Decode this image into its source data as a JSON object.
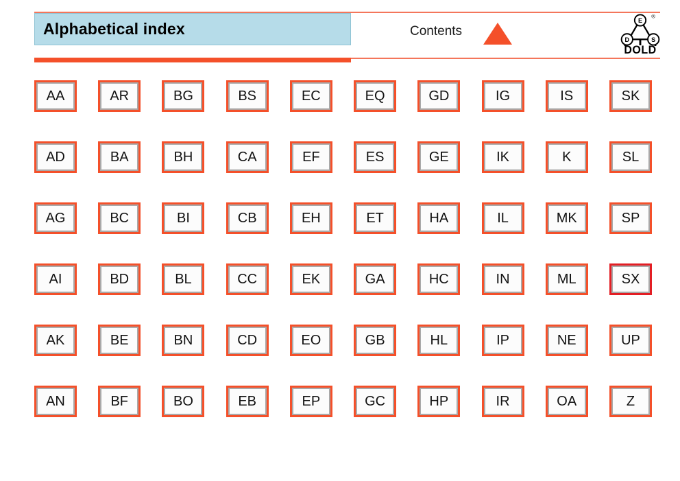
{
  "header": {
    "title": "Alphabetical index",
    "contents_label": "Contents",
    "logo": {
      "brand": "DOLD",
      "emblem_letters": [
        "E",
        "D",
        "S"
      ],
      "registered_mark": "®"
    }
  },
  "colors": {
    "accent_orange": "#F4502A",
    "accent_orange_light": "#F4765B",
    "highlight_red": "#E31E24",
    "title_bg_blue": "#B6DCE9",
    "button_border_gray": "#A9A9A9",
    "button_bg": "#FCFCFC",
    "text_black": "#111111"
  },
  "index_grid": {
    "rows": [
      [
        "AA",
        "AR",
        "BG",
        "BS",
        "EC",
        "EQ",
        "GD",
        "IG",
        "IS",
        "SK"
      ],
      [
        "AD",
        "BA",
        "BH",
        "CA",
        "EF",
        "ES",
        "GE",
        "IK",
        "K",
        "SL"
      ],
      [
        "AG",
        "BC",
        "BI",
        "CB",
        "EH",
        "ET",
        "HA",
        "IL",
        "MK",
        "SP"
      ],
      [
        "AI",
        "BD",
        "BL",
        "CC",
        "EK",
        "GA",
        "HC",
        "IN",
        "ML",
        "SX"
      ],
      [
        "AK",
        "BE",
        "BN",
        "CD",
        "EO",
        "GB",
        "HL",
        "IP",
        "NE",
        "UP"
      ],
      [
        "AN",
        "BF",
        "BO",
        "EB",
        "EP",
        "GC",
        "HP",
        "IR",
        "OA",
        "Z"
      ]
    ],
    "highlighted": "SX"
  }
}
